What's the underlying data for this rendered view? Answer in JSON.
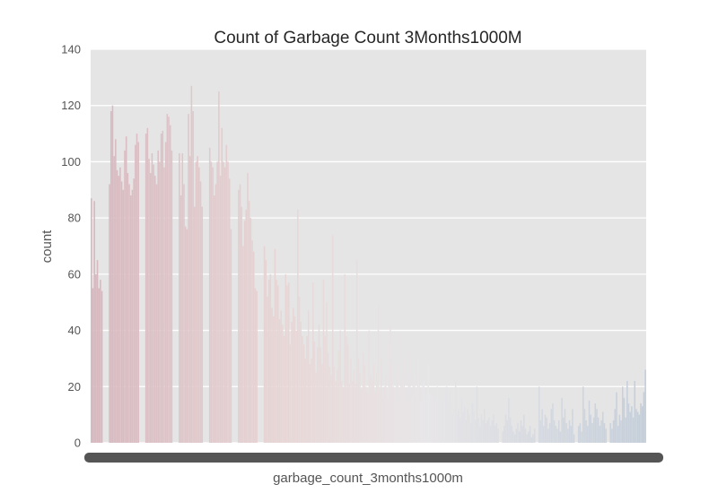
{
  "chart_data": {
    "type": "bar",
    "title": "Count of Garbage Count 3Months1000M",
    "xlabel": "garbage_count_3months1000m",
    "ylabel": "count",
    "ylim": [
      0,
      140
    ],
    "yticks": [
      0,
      20,
      40,
      60,
      80,
      100,
      120,
      140
    ],
    "grid": true,
    "legend": "none",
    "x_tick_note": "dense unreadable category tick labels",
    "series": [
      {
        "values": [
          87,
          55,
          86,
          60,
          65,
          55,
          58,
          54,
          0,
          0,
          0,
          0,
          92,
          118,
          120,
          102,
          108,
          97,
          95,
          98,
          93,
          90,
          104,
          109,
          96,
          92,
          88,
          90,
          94,
          106,
          110,
          107,
          0,
          0,
          0,
          0,
          110,
          112,
          101,
          96,
          103,
          99,
          95,
          92,
          104,
          100,
          110,
          111,
          98,
          107,
          117,
          116,
          113,
          104,
          0,
          0,
          0,
          0,
          103,
          88,
          103,
          92,
          77,
          76,
          117,
          102,
          127,
          118,
          84,
          100,
          102,
          98,
          93,
          84,
          0,
          0,
          0,
          0,
          105,
          100,
          98,
          88,
          92,
          100,
          125,
          95,
          112,
          100,
          98,
          106,
          100,
          94,
          76,
          0,
          0,
          0,
          0,
          90,
          92,
          84,
          70,
          79,
          83,
          96,
          86,
          80,
          72,
          68,
          55,
          54,
          0,
          0,
          0,
          0,
          70,
          65,
          52,
          58,
          60,
          48,
          45,
          69,
          58,
          56,
          44,
          47,
          42,
          38,
          60,
          56,
          57,
          35,
          43,
          48,
          45,
          40,
          83,
          52,
          43,
          38,
          35,
          30,
          38,
          47,
          28,
          30,
          57,
          36,
          25,
          34,
          42,
          34,
          28,
          58,
          38,
          50,
          32,
          27,
          24,
          74,
          27,
          22,
          26,
          33,
          40,
          22,
          20,
          60,
          38,
          35,
          21,
          30,
          22,
          26,
          21,
          65,
          30,
          25,
          19,
          32,
          28,
          20,
          18,
          40,
          24,
          22,
          28,
          18,
          25,
          49,
          20,
          30,
          17,
          20,
          24,
          16,
          36,
          42,
          28,
          20,
          14,
          26,
          39,
          19,
          22,
          22,
          30,
          19,
          15,
          25,
          33,
          16,
          22,
          24,
          18,
          32,
          26,
          15,
          20,
          22,
          15,
          18,
          28,
          18,
          17,
          17,
          13,
          16,
          20,
          14,
          18,
          15,
          13,
          12,
          20,
          14,
          18,
          11,
          10,
          12,
          22,
          10,
          12,
          9,
          16,
          11,
          13,
          8,
          12,
          10,
          7,
          14,
          11,
          8,
          20,
          9,
          6,
          10,
          8,
          12,
          7,
          8,
          9,
          6,
          8,
          10,
          6,
          7,
          5,
          0,
          0,
          4,
          6,
          10,
          8,
          16,
          9,
          6,
          4,
          3,
          5,
          7,
          4,
          8,
          6,
          10,
          5,
          3,
          4,
          6,
          2,
          3,
          5,
          0,
          0,
          20,
          8,
          12,
          6,
          10,
          9,
          5,
          7,
          12,
          14,
          8,
          6,
          5,
          8,
          4,
          16,
          9,
          12,
          7,
          5,
          8,
          6,
          12,
          3,
          0,
          0,
          6,
          7,
          4,
          20,
          12,
          8,
          6,
          15,
          10,
          7,
          9,
          14,
          12,
          9,
          6,
          8,
          11,
          7,
          5,
          0,
          0,
          7,
          5,
          8,
          12,
          18,
          6,
          10,
          8,
          20,
          16,
          9,
          22,
          14,
          11,
          13,
          9,
          22,
          12,
          11,
          10,
          14,
          13,
          18,
          26
        ]
      }
    ]
  }
}
